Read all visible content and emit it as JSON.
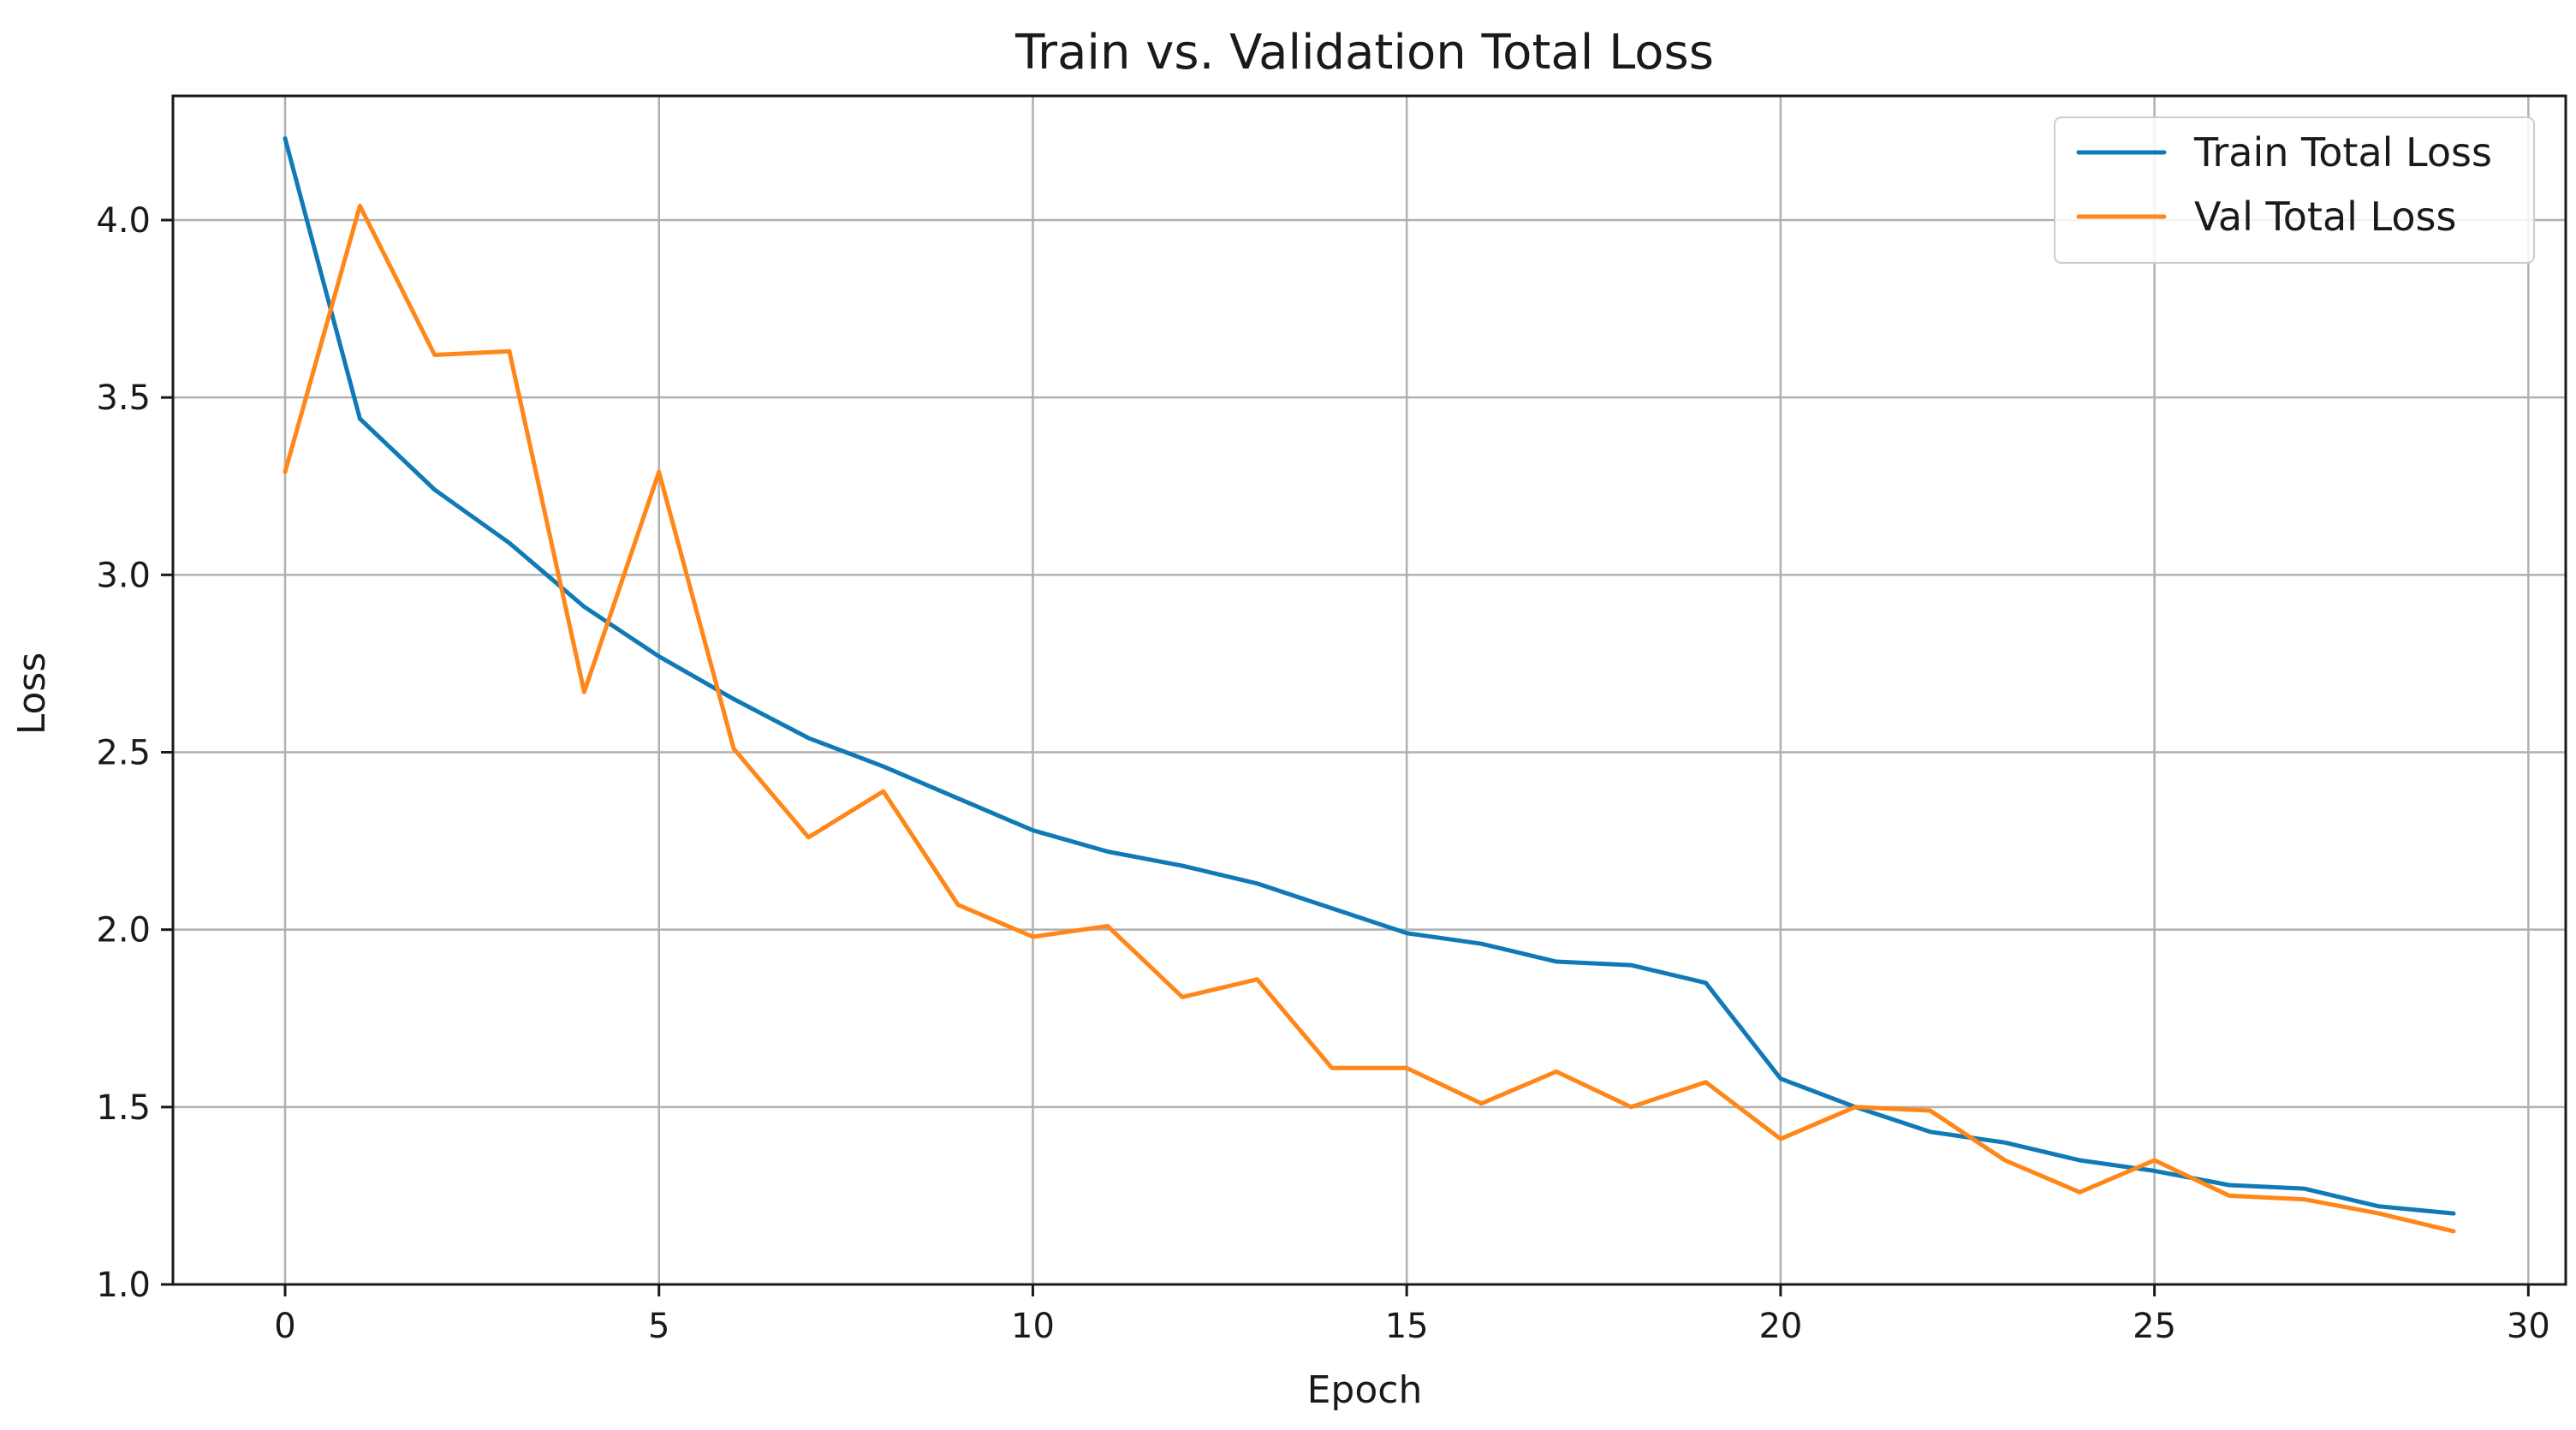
{
  "chart_data": {
    "type": "line",
    "title": "Train vs. Validation Total Loss",
    "xlabel": "Epoch",
    "ylabel": "Loss",
    "xlim": [
      -1.5,
      30.5
    ],
    "ylim": [
      1.0,
      4.35
    ],
    "xticks": [
      0,
      5,
      10,
      15,
      20,
      25,
      30
    ],
    "yticks": [
      1.0,
      1.5,
      2.0,
      2.5,
      3.0,
      3.5,
      4.0
    ],
    "xtick_labels": [
      "0",
      "5",
      "10",
      "15",
      "20",
      "25",
      "30"
    ],
    "ytick_labels": [
      "1.0",
      "1.5",
      "2.0",
      "2.5",
      "3.0",
      "3.5",
      "4.0"
    ],
    "grid": true,
    "legend_position": "top-right",
    "x": [
      0,
      1,
      2,
      3,
      4,
      5,
      6,
      7,
      8,
      9,
      10,
      11,
      12,
      13,
      14,
      15,
      16,
      17,
      18,
      19,
      20,
      21,
      22,
      23,
      24,
      25,
      26,
      27,
      28,
      29
    ],
    "series": [
      {
        "name": "Train Total Loss",
        "color": "#0f7ab6",
        "values": [
          4.23,
          3.44,
          3.24,
          3.09,
          2.91,
          2.77,
          2.65,
          2.54,
          2.46,
          2.37,
          2.28,
          2.22,
          2.18,
          2.13,
          2.06,
          1.99,
          1.96,
          1.91,
          1.9,
          1.85,
          1.58,
          1.5,
          1.43,
          1.4,
          1.35,
          1.32,
          1.28,
          1.27,
          1.22,
          1.2
        ]
      },
      {
        "name": "Val Total Loss",
        "color": "#ff8617",
        "values": [
          3.29,
          4.04,
          3.62,
          3.63,
          2.67,
          3.29,
          2.51,
          2.26,
          2.39,
          2.07,
          1.98,
          2.01,
          1.81,
          1.86,
          1.61,
          1.61,
          1.51,
          1.6,
          1.5,
          1.57,
          1.41,
          1.5,
          1.49,
          1.35,
          1.26,
          1.35,
          1.25,
          1.24,
          1.2,
          1.15
        ]
      }
    ]
  }
}
